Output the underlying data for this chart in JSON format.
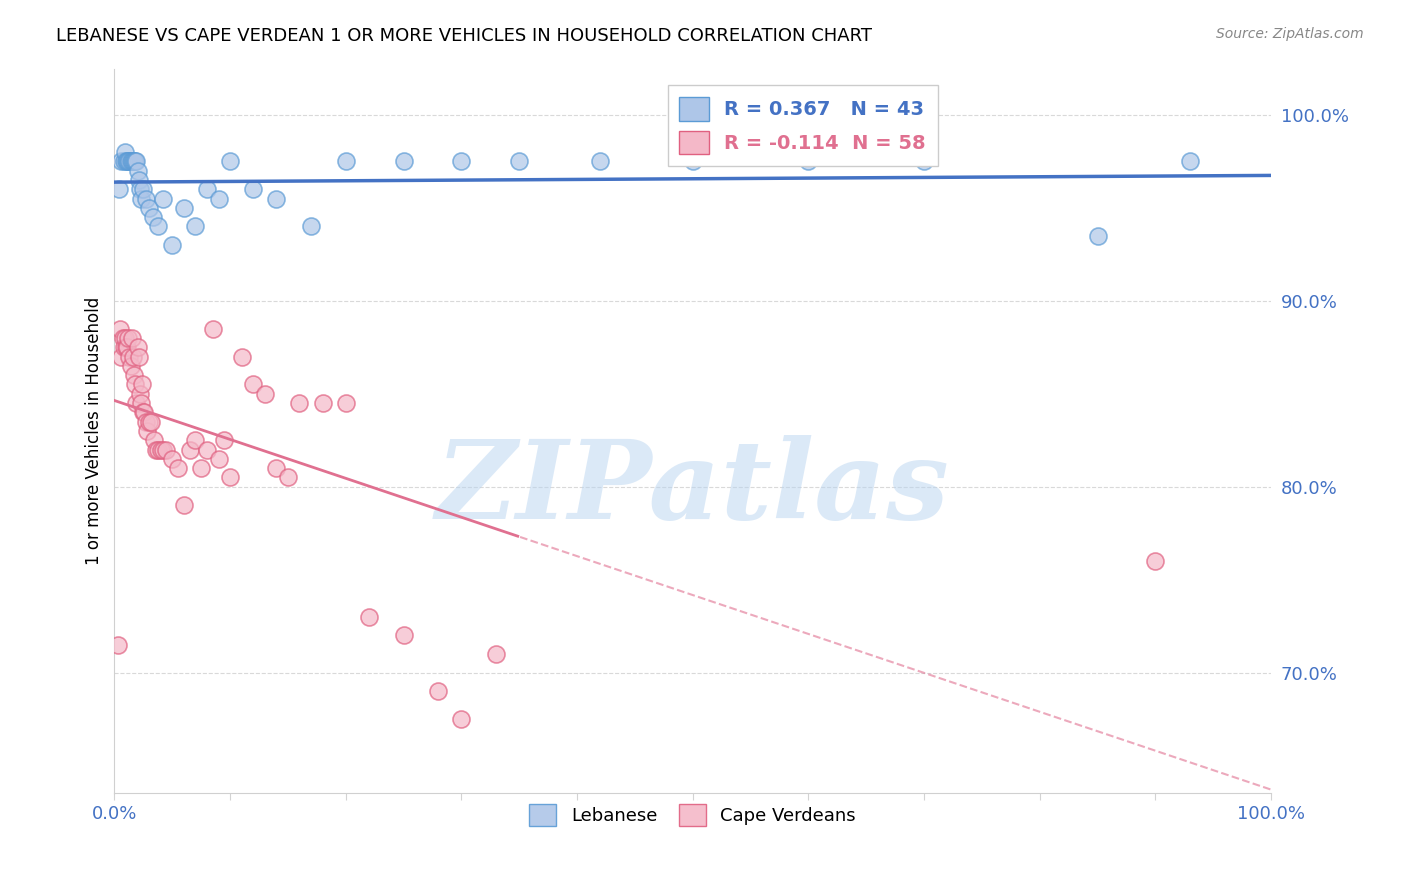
{
  "title": "LEBANESE VS CAPE VERDEAN 1 OR MORE VEHICLES IN HOUSEHOLD CORRELATION CHART",
  "source": "Source: ZipAtlas.com",
  "ylabel": "1 or more Vehicles in Household",
  "legend_lebanese": "Lebanese",
  "legend_capeverdean": "Cape Verdeans",
  "R_lebanese": 0.367,
  "N_lebanese": 43,
  "R_capeverdean": -0.114,
  "N_capeverdean": 58,
  "blue_dot_color": "#aec6e8",
  "blue_dot_edge": "#5b9bd5",
  "pink_dot_color": "#f4b8c8",
  "pink_dot_edge": "#e06080",
  "blue_line_color": "#4472c4",
  "pink_line_color": "#e07090",
  "watermark_text": "ZIPatlas",
  "watermark_color": "#b8d4f0",
  "xlim": [
    0.0,
    1.0
  ],
  "ylim": [
    0.635,
    1.025
  ],
  "yticks": [
    0.7,
    0.8,
    0.9,
    1.0
  ],
  "ytick_labels": [
    "70.0%",
    "80.0%",
    "90.0%",
    "100.0%"
  ],
  "xticks": [
    0.0,
    0.1,
    0.2,
    0.3,
    0.4,
    0.5,
    0.6,
    0.7,
    0.8,
    0.9,
    1.0
  ],
  "lebanese_x": [
    0.004,
    0.006,
    0.008,
    0.009,
    0.01,
    0.011,
    0.012,
    0.013,
    0.014,
    0.015,
    0.016,
    0.017,
    0.018,
    0.019,
    0.02,
    0.021,
    0.022,
    0.023,
    0.025,
    0.027,
    0.03,
    0.033,
    0.038,
    0.042,
    0.05,
    0.06,
    0.07,
    0.08,
    0.09,
    0.1,
    0.12,
    0.14,
    0.17,
    0.2,
    0.25,
    0.3,
    0.35,
    0.42,
    0.5,
    0.6,
    0.7,
    0.85,
    0.93
  ],
  "lebanese_y": [
    0.96,
    0.975,
    0.975,
    0.98,
    0.975,
    0.975,
    0.975,
    0.975,
    0.975,
    0.975,
    0.975,
    0.975,
    0.975,
    0.975,
    0.97,
    0.965,
    0.96,
    0.955,
    0.96,
    0.955,
    0.95,
    0.945,
    0.94,
    0.955,
    0.93,
    0.95,
    0.94,
    0.96,
    0.955,
    0.975,
    0.96,
    0.955,
    0.94,
    0.975,
    0.975,
    0.975,
    0.975,
    0.975,
    0.975,
    0.975,
    0.975,
    0.935,
    0.975
  ],
  "capeverdean_x": [
    0.003,
    0.005,
    0.006,
    0.007,
    0.008,
    0.009,
    0.01,
    0.011,
    0.012,
    0.013,
    0.014,
    0.015,
    0.016,
    0.017,
    0.018,
    0.019,
    0.02,
    0.021,
    0.022,
    0.023,
    0.024,
    0.025,
    0.026,
    0.027,
    0.028,
    0.03,
    0.032,
    0.034,
    0.036,
    0.038,
    0.04,
    0.042,
    0.045,
    0.05,
    0.055,
    0.06,
    0.065,
    0.07,
    0.075,
    0.08,
    0.085,
    0.09,
    0.095,
    0.1,
    0.11,
    0.12,
    0.13,
    0.14,
    0.15,
    0.16,
    0.18,
    0.2,
    0.22,
    0.25,
    0.28,
    0.3,
    0.33,
    0.9
  ],
  "capeverdean_y": [
    0.715,
    0.885,
    0.87,
    0.88,
    0.875,
    0.88,
    0.875,
    0.875,
    0.88,
    0.87,
    0.865,
    0.88,
    0.87,
    0.86,
    0.855,
    0.845,
    0.875,
    0.87,
    0.85,
    0.845,
    0.855,
    0.84,
    0.84,
    0.835,
    0.83,
    0.835,
    0.835,
    0.825,
    0.82,
    0.82,
    0.82,
    0.82,
    0.82,
    0.815,
    0.81,
    0.79,
    0.82,
    0.825,
    0.81,
    0.82,
    0.885,
    0.815,
    0.825,
    0.805,
    0.87,
    0.855,
    0.85,
    0.81,
    0.805,
    0.845,
    0.845,
    0.845,
    0.73,
    0.72,
    0.69,
    0.675,
    0.71,
    0.76
  ],
  "leb_line_x_start": 0.0,
  "leb_line_x_end": 1.0,
  "cape_line_x_solid_start": 0.0,
  "cape_line_x_solid_end": 0.5,
  "cape_line_x_dash_start": 0.5,
  "cape_line_x_dash_end": 1.0
}
